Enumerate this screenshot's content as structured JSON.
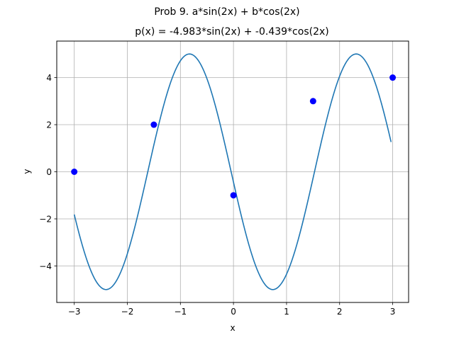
{
  "figure": {
    "suptitle": "Prob 9. a*sin(2x) + b*cos(2x)"
  },
  "chart_data": {
    "type": "line",
    "title": "p(x) = -4.983*sin(2x) + -0.439*cos(2x)",
    "xlabel": "x",
    "ylabel": "y",
    "xlim": [
      -3.33,
      3.3
    ],
    "ylim": [
      -5.55,
      5.55
    ],
    "grid": true,
    "xticks": [
      -3,
      -2,
      -1,
      0,
      1,
      2,
      3
    ],
    "yticks": [
      -4,
      -2,
      0,
      2,
      4
    ],
    "xtick_labels": [
      "−3",
      "−2",
      "−1",
      "0",
      "1",
      "2",
      "3"
    ],
    "ytick_labels": [
      "−4",
      "−2",
      "0",
      "2",
      "4"
    ],
    "fit": {
      "a": -4.983,
      "b": -0.439,
      "x_range": [
        -3.0,
        2.97
      ],
      "color": "#1f77b4"
    },
    "points": {
      "x": [
        -3.0,
        -1.5,
        0.0,
        1.5,
        3.0
      ],
      "y": [
        0,
        2,
        -1,
        3,
        4
      ],
      "color": "#0000ff"
    }
  }
}
